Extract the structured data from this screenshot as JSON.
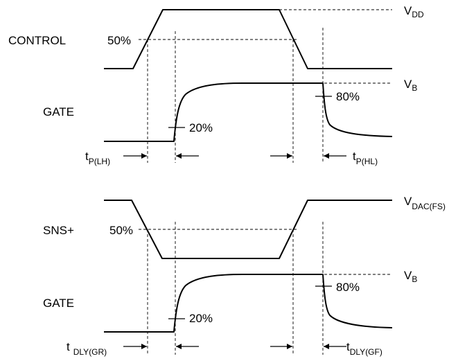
{
  "top": {
    "control_label": "CONTROL",
    "gate_label": "GATE",
    "pct_50": "50%",
    "pct_20": "20%",
    "pct_80": "80%",
    "vdd_main": "V",
    "vdd_sub": "DD",
    "vb_main": "V",
    "vb_sub": "B",
    "tplh_main": "t",
    "tplh_sub": "P(LH)",
    "tphl_main": "t",
    "tphl_sub": "P(HL)"
  },
  "bottom": {
    "sns_label": "SNS+",
    "gate_label": "GATE",
    "pct_50": "50%",
    "pct_20": "20%",
    "pct_80": "80%",
    "vdac_main": "V",
    "vdac_sub": "DAC(FS)",
    "vb_main": "V",
    "vb_sub": "B",
    "tdlygr_main": "t",
    "tdlygr_sub": "DLY(GR)",
    "tdlygf_main": "t",
    "tdlygf_sub": "DLY(GF)"
  }
}
